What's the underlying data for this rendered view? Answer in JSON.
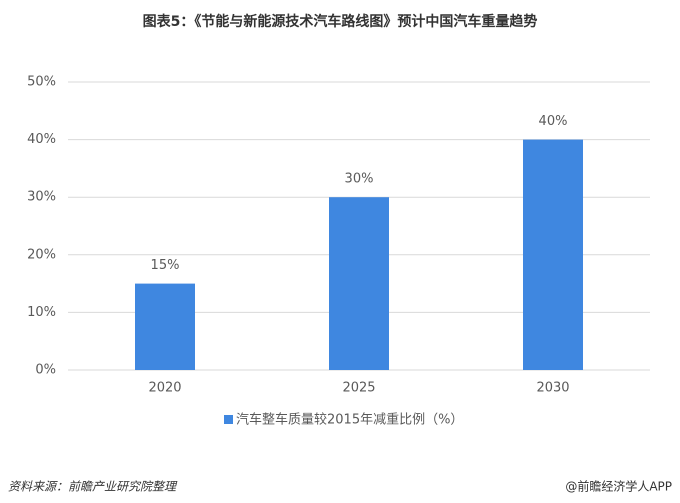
{
  "chart_data": {
    "type": "bar",
    "title": "图表5：《节能与新能源技术汽车路线图》预计中国汽车重量趋势",
    "categories": [
      "2020",
      "2025",
      "2030"
    ],
    "series": [
      {
        "name": "汽车整车质量较2015年减重比例（%）",
        "color": "#3f87e0",
        "values": [
          15,
          30,
          40
        ],
        "value_labels": [
          "15%",
          "30%",
          "40%"
        ]
      }
    ],
    "ylim": [
      0,
      50
    ],
    "yticks": [
      {
        "value": 0,
        "label": "0%"
      },
      {
        "value": 10,
        "label": "10%"
      },
      {
        "value": 20,
        "label": "20%"
      },
      {
        "value": 30,
        "label": "30%"
      },
      {
        "value": 40,
        "label": "40%"
      },
      {
        "value": 50,
        "label": "50%"
      }
    ],
    "grid": true,
    "legend": "bottom",
    "source": "资料来源：前瞻产业研究院整理",
    "credit": "@前瞻经济学人APP"
  }
}
